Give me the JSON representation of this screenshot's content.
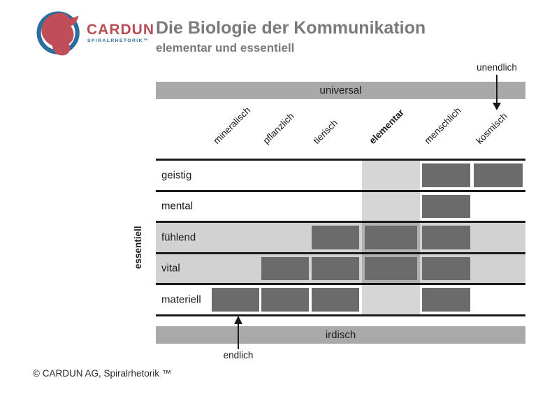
{
  "logo": {
    "brand": "CARDUN",
    "tagline": "SPIRALRHETORIK™",
    "brand_color": "#b94d56",
    "ring_color": "#2b6e9d"
  },
  "header": {
    "title": "Die Biologie der Kommunikation",
    "subtitle": "elementar und essentiell"
  },
  "matrix": {
    "top_bar_label": "universal",
    "bottom_bar_label": "irdisch",
    "top_arrow_label": "unendlich",
    "bottom_arrow_label": "endlich",
    "side_label": "essentiell",
    "highlighted_column": "elementar",
    "columns": [
      {
        "label": "mineralisch",
        "emphasis": false
      },
      {
        "label": "pflanzlich",
        "emphasis": false
      },
      {
        "label": "tierisch",
        "emphasis": false
      },
      {
        "label": "elementar",
        "emphasis": true
      },
      {
        "label": "menschlich",
        "emphasis": false
      },
      {
        "label": "kosmisch",
        "emphasis": false
      }
    ],
    "rows": [
      {
        "label": "geistig",
        "shaded": false,
        "marks": [
          0,
          0,
          0,
          0,
          1,
          1
        ]
      },
      {
        "label": "mental",
        "shaded": false,
        "marks": [
          0,
          0,
          0,
          0,
          1,
          0
        ]
      },
      {
        "label": "fühlend",
        "shaded": true,
        "marks": [
          0,
          0,
          1,
          1,
          1,
          0
        ]
      },
      {
        "label": "vital",
        "shaded": true,
        "marks": [
          0,
          1,
          1,
          1,
          1,
          0
        ]
      },
      {
        "label": "materiell",
        "shaded": false,
        "marks": [
          1,
          1,
          1,
          0,
          1,
          0
        ]
      }
    ]
  },
  "footer": {
    "copyright": "© CARDUN AG, Spiralrhetorik ™"
  },
  "colors": {
    "bar_gray": "#a9a9a9",
    "row_shaded": "#d2d2d2",
    "block_gray": "#6b6b6b",
    "title_gray": "#7a7a7a",
    "line_black": "#1a1a1a"
  }
}
